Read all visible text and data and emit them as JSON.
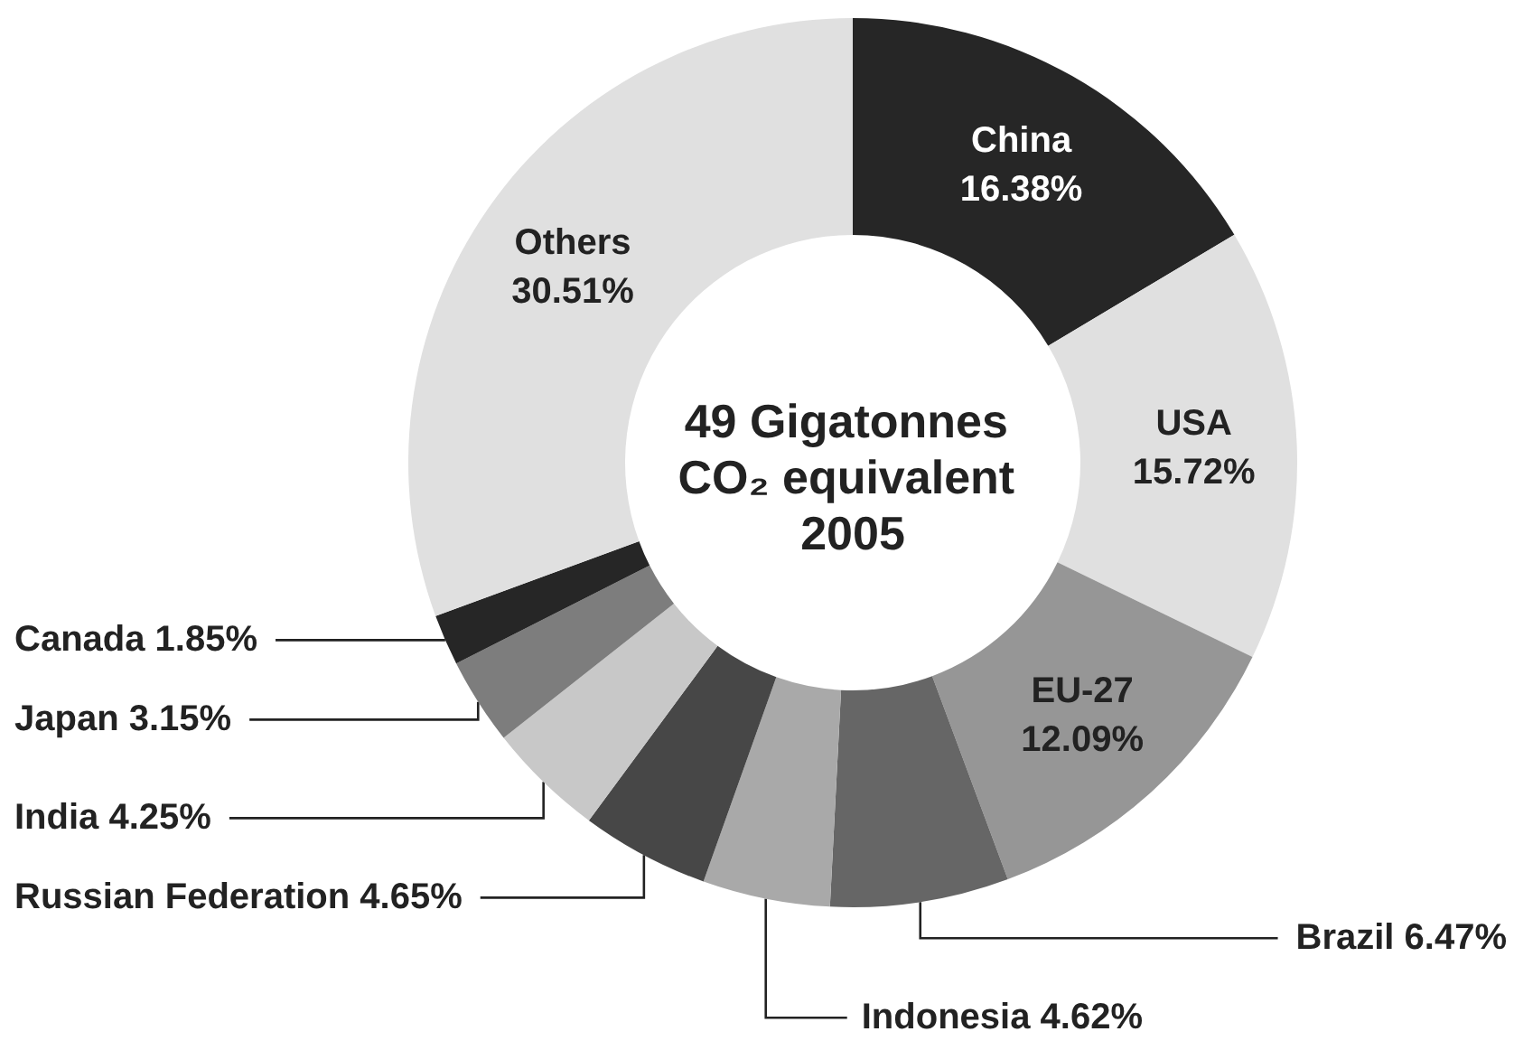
{
  "chart_data": {
    "type": "donut",
    "title": "49 Gigatonnes CO₂ equivalent 2005",
    "categories": [
      "China",
      "USA",
      "EU-27",
      "Brazil",
      "Indonesia",
      "Russian Federation",
      "India",
      "Japan",
      "Canada",
      "Others"
    ],
    "values": [
      16.38,
      15.72,
      12.09,
      6.47,
      4.62,
      4.65,
      4.25,
      3.15,
      1.85,
      30.51
    ],
    "value_labels": [
      "16.38%",
      "15.72%",
      "12.09%",
      "6.47%",
      "4.62%",
      "4.65%",
      "4.25%",
      "3.15%",
      "1.85%",
      "30.51%"
    ],
    "colors": [
      "#262626",
      "#e0e0e0",
      "#969696",
      "#666666",
      "#a9a9a9",
      "#474747",
      "#c8c8c8",
      "#7d7d7d",
      "#262626",
      "#e0e0e0"
    ]
  }
}
